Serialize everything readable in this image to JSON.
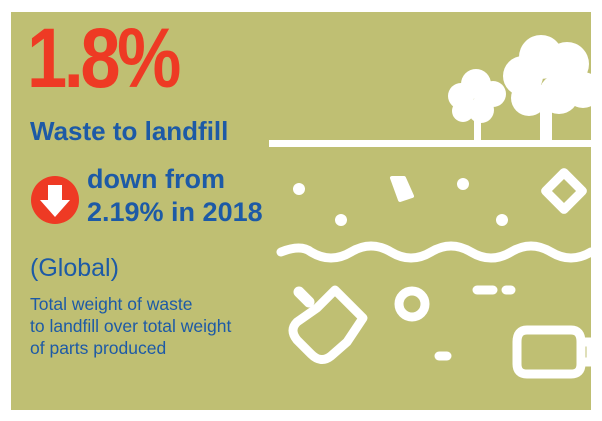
{
  "stat": {
    "value": "1.8%",
    "headline": "Waste to landfill",
    "change_line_1": "down from",
    "change_line_2": "2.19% in 2018",
    "region": "(Global)",
    "description_line_1": "Total weight of waste",
    "description_line_2": "to landfill over total weight",
    "description_line_3": "of parts produced"
  },
  "colors": {
    "background": "#bfbf73",
    "value": "#ee3a24",
    "text": "#1d5aa6",
    "arrow_badge": "#ee3a24",
    "illustration": "#ffffff"
  },
  "icons": {
    "change": "arrow-down-circle-icon",
    "trees": "trees-icon",
    "landfill_debris": "landfill-debris-icon"
  }
}
